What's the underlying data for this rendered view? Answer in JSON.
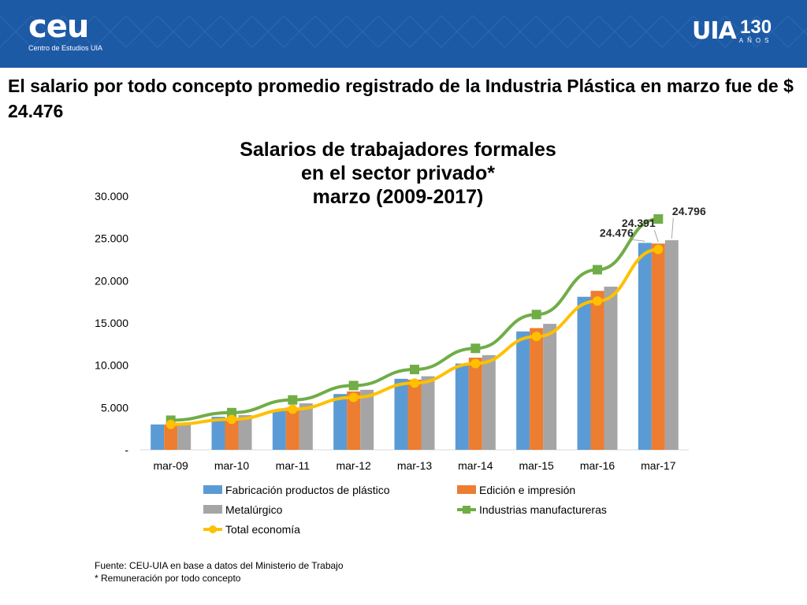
{
  "header": {
    "logo_left": {
      "name": "ceu",
      "subtitle": "Centro de Estudios UIA"
    },
    "logo_right": {
      "name": "UIA",
      "number": "130",
      "caption": "AÑOS"
    },
    "banner_color": "#1d5aa6"
  },
  "headline": "El salario por todo concepto promedio registrado de la Industria Plástica en marzo fue de $ 24.476",
  "chart_data": {
    "type": "bar",
    "title_lines": [
      "Salarios de trabajadores formales",
      "en el sector privado*",
      "marzo (2009-2017)"
    ],
    "categories": [
      "mar-09",
      "mar-10",
      "mar-11",
      "mar-12",
      "mar-13",
      "mar-14",
      "mar-15",
      "mar-16",
      "mar-17"
    ],
    "ylim": [
      0,
      30000
    ],
    "yticks": [
      0,
      5000,
      10000,
      15000,
      20000,
      25000,
      30000
    ],
    "ytick_labels": [
      "-",
      "5.000",
      "10.000",
      "15.000",
      "20.000",
      "25.000",
      "30.000"
    ],
    "series": [
      {
        "name": "Fabricación productos de plástico",
        "kind": "bar",
        "color": "#5b9bd5",
        "values": [
          3000,
          3900,
          4700,
          6600,
          8400,
          10200,
          14000,
          18100,
          24476
        ]
      },
      {
        "name": "Edición e impresión",
        "kind": "bar",
        "color": "#ed7d31",
        "values": [
          3000,
          3800,
          5000,
          6900,
          8300,
          10900,
          14400,
          18800,
          24391
        ]
      },
      {
        "name": "Metalúrgico",
        "kind": "bar",
        "color": "#a5a5a5",
        "values": [
          3100,
          4100,
          5500,
          7100,
          8700,
          11200,
          14900,
          19300,
          24796
        ]
      },
      {
        "name": "Industrias manufactureras",
        "kind": "line",
        "color": "#70ad47",
        "marker": "square",
        "values": [
          3500,
          4400,
          5900,
          7600,
          9500,
          12000,
          16000,
          21300,
          27300
        ]
      },
      {
        "name": "Total economía",
        "kind": "line",
        "color": "#ffc000",
        "marker": "circle",
        "values": [
          3000,
          3600,
          4800,
          6200,
          7900,
          10200,
          13400,
          17600,
          23700
        ]
      }
    ],
    "data_labels": [
      {
        "series": 0,
        "index": 8,
        "text": "24.476"
      },
      {
        "series": 1,
        "index": 8,
        "text": "24.391"
      },
      {
        "series": 2,
        "index": 8,
        "text": "24.796"
      }
    ],
    "legend_position": "bottom"
  },
  "source_lines": [
    "Fuente: CEU-UIA en base a datos del Ministerio de Trabajo",
    "* Remuneración por todo concepto"
  ]
}
